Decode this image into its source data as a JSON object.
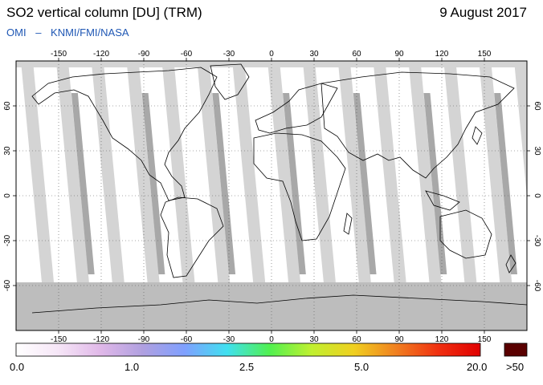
{
  "header": {
    "title": "SO2 vertical column [DU] (TRM)",
    "date": "9 August 2017",
    "instrument": "OMI",
    "separator": "–",
    "agencies": "KNMI/FMI/NASA"
  },
  "map": {
    "projection": "equirectangular",
    "lon_range": [
      -180,
      180
    ],
    "lat_range": [
      -90,
      90
    ],
    "lon_ticks": [
      "-150",
      "-120",
      "-90",
      "-60",
      "-30",
      "0",
      "30",
      "60",
      "90",
      "120",
      "150"
    ],
    "lat_ticks": [
      "60",
      "30",
      "0",
      "-30",
      "-60"
    ],
    "colors": {
      "background": "#ffffff",
      "no_data": "#d4d4d4",
      "overpass_overlap": "#a8a8a8",
      "polar_no_data": "#bdbdbd",
      "coastline": "#000000",
      "graticule": "#555555"
    }
  },
  "colorbar": {
    "labels": [
      "0.0",
      "1.0",
      "2.5",
      "5.0",
      "20.0"
    ],
    "overflow_label": ">50",
    "colors": [
      "#ffffff",
      "#f6e6f7",
      "#e0b8e8",
      "#b0a0e0",
      "#7fa0ff",
      "#40e0f0",
      "#50f050",
      "#c0f030",
      "#f0d020",
      "#f08020",
      "#f03010",
      "#e00000"
    ],
    "overflow_color": "#5a0000"
  }
}
